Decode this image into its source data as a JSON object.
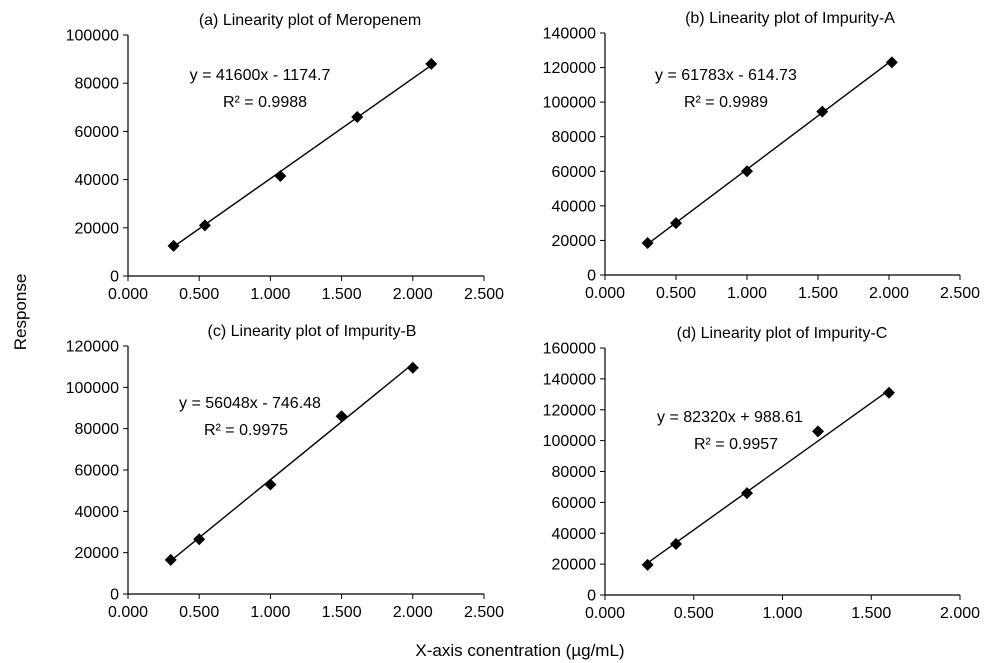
{
  "figure": {
    "ylabel": "Response",
    "xlabel": "X-axis conentration (µg/mL)"
  },
  "chart_data": [
    {
      "type": "scatter",
      "title": "(a) Linearity plot of Meropenem",
      "xlim": [
        0,
        2.5
      ],
      "ylim": [
        0,
        100000
      ],
      "xticks": [
        "0.000",
        "0.500",
        "1.000",
        "1.500",
        "2.000",
        "2.500"
      ],
      "yticks": [
        "0",
        "20000",
        "40000",
        "60000",
        "80000",
        "100000"
      ],
      "grid": false,
      "marker": "diamond",
      "series": [
        {
          "x": [
            0.32,
            0.54,
            1.07,
            1.61,
            2.13
          ],
          "y": [
            12500,
            21000,
            41500,
            66000,
            88000
          ]
        }
      ],
      "trendline": {
        "slope": 41600,
        "intercept": -1174.7
      },
      "equation": "y = 41600x - 1174.7",
      "r2": "R² = 0.9988"
    },
    {
      "type": "scatter",
      "title": "(b) Linearity plot of Impurity-A",
      "xlim": [
        0,
        2.5
      ],
      "ylim": [
        0,
        140000
      ],
      "xticks": [
        "0.000",
        "0.500",
        "1.000",
        "1.500",
        "2.000",
        "2.500"
      ],
      "yticks": [
        "0",
        "20000",
        "40000",
        "60000",
        "80000",
        "100000",
        "120000",
        "140000"
      ],
      "grid": false,
      "marker": "diamond",
      "series": [
        {
          "x": [
            0.3,
            0.5,
            1.0,
            1.53,
            2.02
          ],
          "y": [
            18500,
            30000,
            60000,
            94500,
            123000
          ]
        }
      ],
      "trendline": {
        "slope": 61783,
        "intercept": -614.73
      },
      "equation": "y = 61783x - 614.73",
      "r2": "R² = 0.9989"
    },
    {
      "type": "scatter",
      "title": "(c) Linearity plot of Impurity-B",
      "xlim": [
        0,
        2.5
      ],
      "ylim": [
        0,
        120000
      ],
      "xticks": [
        "0.000",
        "0.500",
        "1.000",
        "1.500",
        "2.000",
        "2.500"
      ],
      "yticks": [
        "0",
        "20000",
        "40000",
        "60000",
        "80000",
        "100000",
        "120000"
      ],
      "grid": false,
      "marker": "diamond",
      "series": [
        {
          "x": [
            0.3,
            0.5,
            1.0,
            1.5,
            2.0
          ],
          "y": [
            16500,
            26500,
            53000,
            86000,
            109500
          ]
        }
      ],
      "trendline": {
        "slope": 56048,
        "intercept": -746.48
      },
      "equation": "y = 56048x - 746.48",
      "r2": "R² = 0.9975"
    },
    {
      "type": "scatter",
      "title": "(d) Linearity plot of Impurity-C",
      "xlim": [
        0,
        2.0
      ],
      "ylim": [
        0,
        160000
      ],
      "xticks": [
        "0.000",
        "0.500",
        "1.000",
        "1.500",
        "2.000"
      ],
      "yticks": [
        "0",
        "20000",
        "40000",
        "60000",
        "80000",
        "100000",
        "120000",
        "140000",
        "160000"
      ],
      "grid": false,
      "marker": "diamond",
      "series": [
        {
          "x": [
            0.24,
            0.4,
            0.8,
            1.2,
            1.6
          ],
          "y": [
            19500,
            33000,
            66000,
            106000,
            131000
          ]
        }
      ],
      "trendline": {
        "slope": 82320,
        "intercept": 988.61
      },
      "equation": "y = 82320x + 988.61",
      "r2": "R² = 0.9957"
    }
  ]
}
